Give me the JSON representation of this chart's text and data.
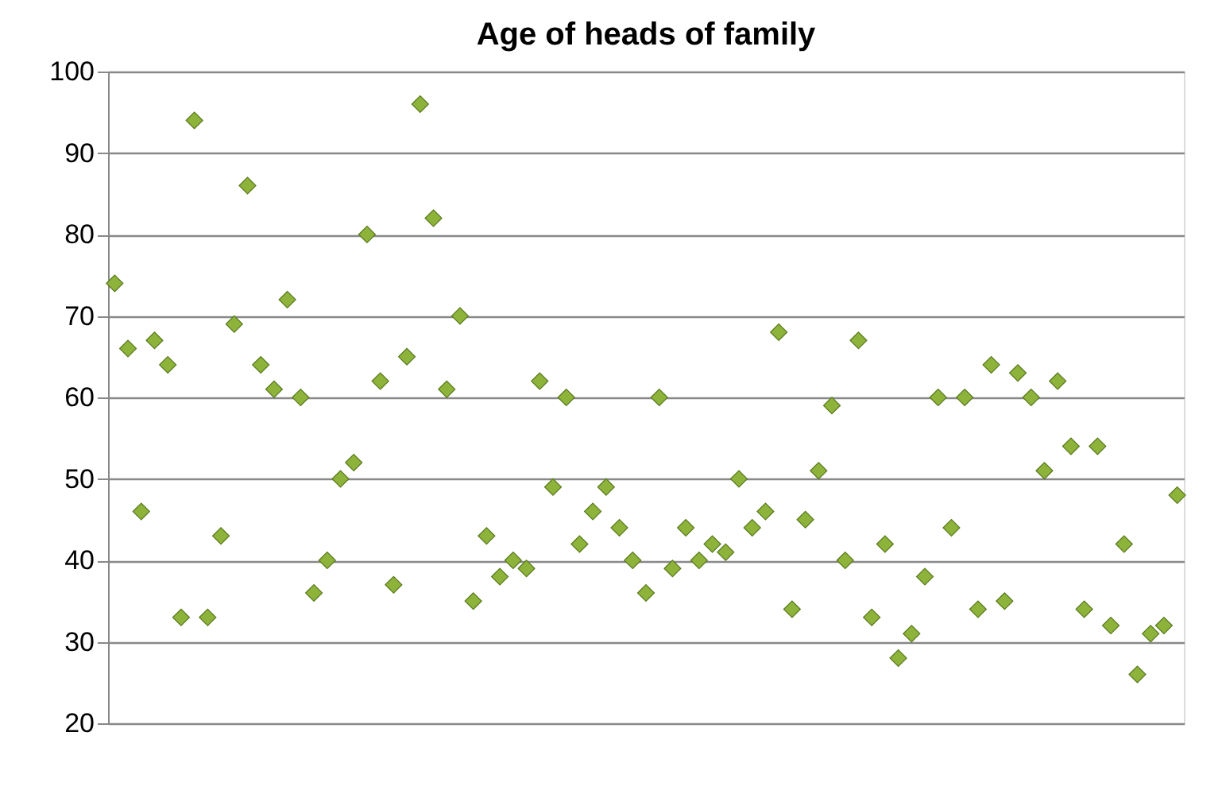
{
  "chart_data": {
    "type": "scatter",
    "title": "Age of heads of family",
    "categories": [
      null,
      null,
      null,
      null,
      null,
      null,
      null,
      null,
      null,
      null,
      null,
      null,
      null,
      null,
      null,
      null,
      null,
      null,
      null,
      null,
      null,
      null,
      null,
      null,
      null,
      null,
      null,
      null,
      null,
      null,
      null,
      null,
      null,
      null,
      null,
      null,
      null,
      null,
      null,
      null,
      null,
      null,
      null,
      null,
      null,
      null,
      null,
      null,
      null,
      null,
      null,
      null,
      null,
      null,
      null,
      null,
      null,
      null,
      null,
      null,
      null,
      null,
      null,
      null,
      null,
      null,
      null,
      null,
      null,
      null,
      null,
      null,
      null,
      null,
      null,
      null,
      null,
      null,
      null,
      null,
      null
    ],
    "values": [
      74,
      66,
      46,
      67,
      64,
      33,
      94,
      33,
      43,
      69,
      86,
      64,
      61,
      72,
      60,
      36,
      40,
      50,
      52,
      80,
      62,
      37,
      65,
      96,
      82,
      61,
      70,
      35,
      43,
      38,
      40,
      39,
      62,
      49,
      60,
      42,
      46,
      49,
      44,
      40,
      36,
      60,
      39,
      44,
      40,
      42,
      41,
      50,
      44,
      46,
      68,
      34,
      45,
      51,
      59,
      40,
      67,
      33,
      42,
      28,
      31,
      38,
      60,
      44,
      60,
      34,
      64,
      35,
      63,
      60,
      51,
      62,
      54,
      34,
      54,
      32,
      42,
      26,
      31,
      32,
      48
    ],
    "color": "#8db33a",
    "marker": "diamond",
    "ylim": [
      20,
      100
    ],
    "yticks": [
      20,
      30,
      40,
      50,
      60,
      70,
      80,
      90,
      100
    ],
    "grid": "y",
    "tick_labels": "y"
  }
}
